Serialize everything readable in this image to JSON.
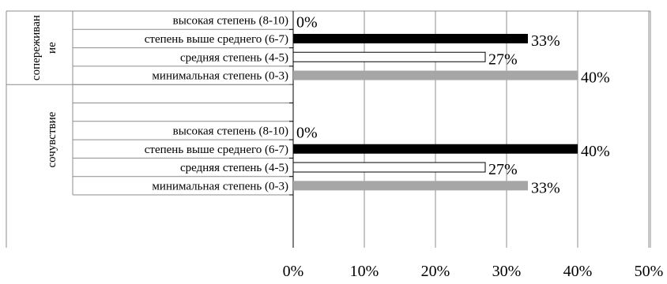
{
  "chart_data": {
    "type": "bar",
    "orientation": "horizontal",
    "xlim": [
      0,
      50
    ],
    "x_ticks": [
      "0%",
      "10%",
      "20%",
      "30%",
      "40%",
      "50%"
    ],
    "grid": true,
    "groups": [
      {
        "label": "сопереживан ие",
        "label_lines": [
          "сопереживан",
          "ие"
        ],
        "rows": [
          {
            "category": "высокая степень (8-10)",
            "value": 0,
            "label": "0%",
            "style": "none"
          },
          {
            "category": "степень выше среднего (6-7)",
            "value": 33,
            "label": "33%",
            "style": "black"
          },
          {
            "category": "средняя степень (4-5)",
            "value": 27,
            "label": "27%",
            "style": "white"
          },
          {
            "category": "минимальная степень (0-3)",
            "value": 40,
            "label": "40%",
            "style": "gray"
          }
        ]
      },
      {
        "label": "сочувствие",
        "label_lines": [
          "сочувствие"
        ],
        "rows": [
          {
            "category": "",
            "value": null,
            "label": "",
            "style": "none"
          },
          {
            "category": "",
            "value": null,
            "label": "",
            "style": "none"
          },
          {
            "category": "высокая степень (8-10)",
            "value": 0,
            "label": "0%",
            "style": "none"
          },
          {
            "category": "степень выше среднего (6-7)",
            "value": 40,
            "label": "40%",
            "style": "black"
          },
          {
            "category": "средняя степень (4-5)",
            "value": 27,
            "label": "27%",
            "style": "white"
          },
          {
            "category": "минимальная степень (0-3)",
            "value": 33,
            "label": "33%",
            "style": "gray"
          }
        ]
      }
    ],
    "colors": {
      "black": "#000000",
      "white": "#ffffff",
      "gray": "#a6a6a6",
      "grid": "#8c8c8c",
      "axis": "#000000"
    }
  }
}
